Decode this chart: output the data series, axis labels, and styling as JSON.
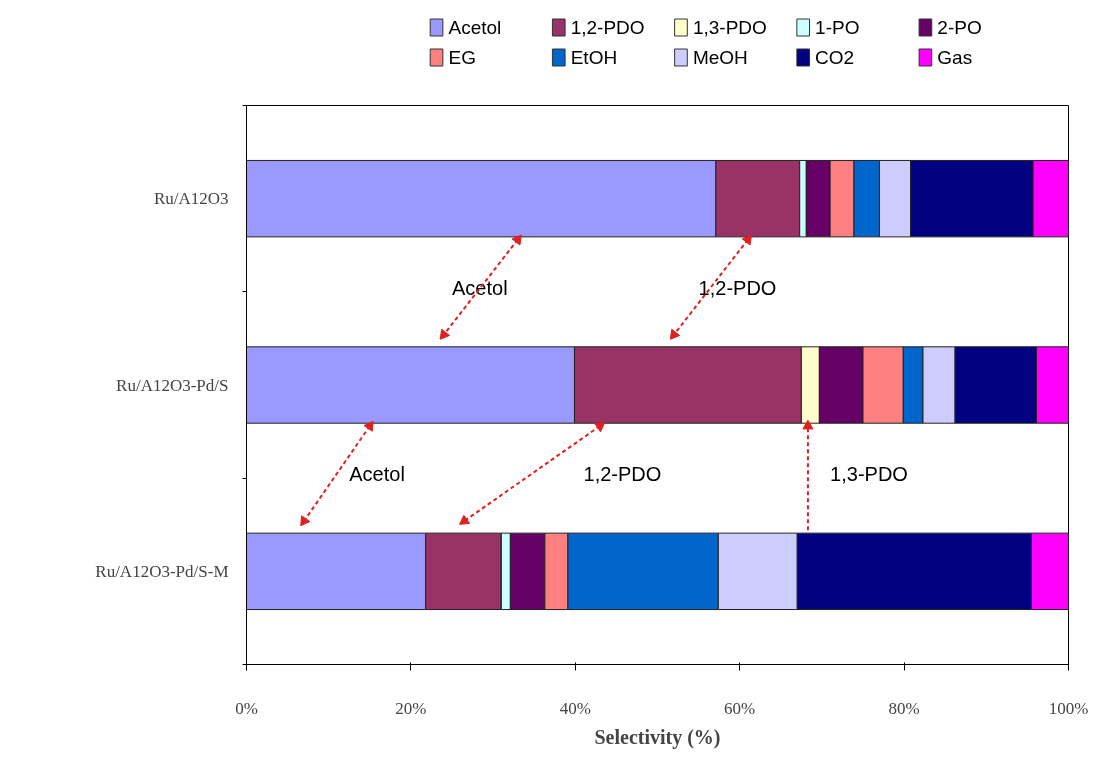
{
  "chart_data": {
    "type": "bar",
    "orientation": "horizontal",
    "stacked": true,
    "categories": [
      "Ru/A12O3",
      "Ru/A12O3-Pd/S",
      "Ru/A12O3-Pd/S-M"
    ],
    "series": [
      {
        "name": "Acetol",
        "color": "#9999ff",
        "values": [
          57.1,
          39.9,
          21.8
        ]
      },
      {
        "name": "1,2-PDO",
        "color": "#993366",
        "values": [
          10.2,
          27.6,
          9.2
        ]
      },
      {
        "name": "1,3-PDO",
        "color": "#ffffcc",
        "values": [
          0,
          2.2,
          0
        ]
      },
      {
        "name": "1-PO",
        "color": "#ccffff",
        "values": [
          0.8,
          0,
          1.1
        ]
      },
      {
        "name": "2-PO",
        "color": "#660066",
        "values": [
          2.9,
          5.3,
          4.2
        ]
      },
      {
        "name": "EG",
        "color": "#ff8080",
        "values": [
          2.9,
          4.9,
          2.8
        ]
      },
      {
        "name": "EtOH",
        "color": "#0066cc",
        "values": [
          3.1,
          2.4,
          18.3
        ]
      },
      {
        "name": "MeOH",
        "color": "#ccccff",
        "values": [
          3.8,
          3.9,
          9.6
        ]
      },
      {
        "name": "CO2",
        "color": "#000080",
        "values": [
          14.9,
          9.9,
          28.5
        ]
      },
      {
        "name": "Gas",
        "color": "#ff00ff",
        "values": [
          4.3,
          3.9,
          4.5
        ]
      }
    ],
    "xlim": [
      0,
      100
    ],
    "xticks": [
      {
        "value": 0,
        "label": "0%"
      },
      {
        "value": 20,
        "label": "20%"
      },
      {
        "value": 40,
        "label": "40%"
      },
      {
        "value": 60,
        "label": "60%"
      },
      {
        "value": 80,
        "label": "80%"
      },
      {
        "value": 100,
        "label": "100%"
      }
    ],
    "xlabel": "Selectivity (%)",
    "legend": "top",
    "grid": false,
    "annotations": [
      "Acetol",
      "1,2-PDO",
      "Acetol",
      "1,2-PDO",
      "1,3-PDO"
    ]
  }
}
